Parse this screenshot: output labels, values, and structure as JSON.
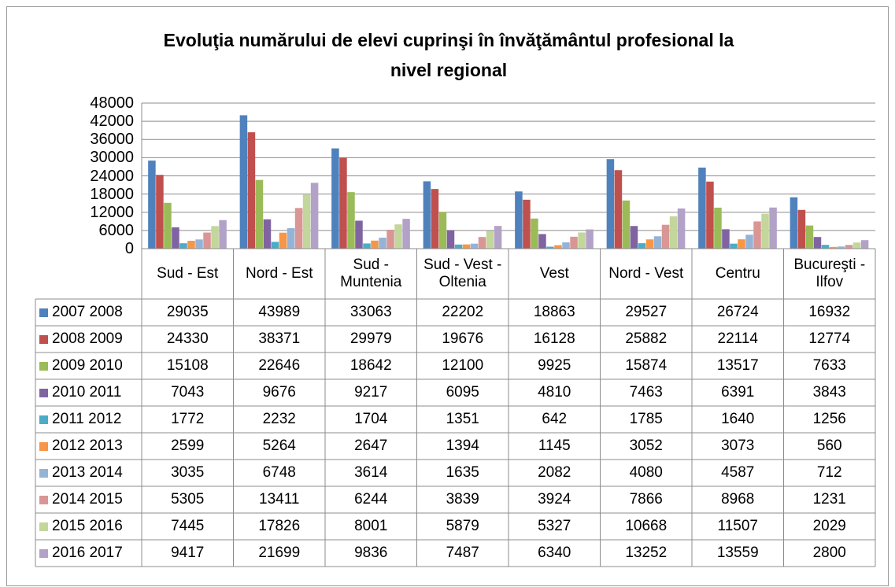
{
  "chart_data": {
    "type": "bar",
    "title": "Evoluţia numărului de elevi cuprinşi în învăţământul profesional la nivel regional",
    "categories": [
      "Sud - Est",
      "Nord - Est",
      "Sud - Muntenia",
      "Sud - Vest - Oltenia",
      "Vest",
      "Nord - Vest",
      "Centru",
      "Bucureşti - Ilfov"
    ],
    "series": [
      {
        "name": "2007 2008",
        "color": "#4f81bd",
        "values": [
          29035,
          43989,
          33063,
          22202,
          18863,
          29527,
          26724,
          16932
        ]
      },
      {
        "name": "2008 2009",
        "color": "#c0504d",
        "values": [
          24330,
          38371,
          29979,
          19676,
          16128,
          25882,
          22114,
          12774
        ]
      },
      {
        "name": "2009 2010",
        "color": "#9bbb59",
        "values": [
          15108,
          22646,
          18642,
          12100,
          9925,
          15874,
          13517,
          7633
        ]
      },
      {
        "name": "2010 2011",
        "color": "#8064a2",
        "values": [
          7043,
          9676,
          9217,
          6095,
          4810,
          7463,
          6391,
          3843
        ]
      },
      {
        "name": "2011 2012",
        "color": "#4bacc6",
        "values": [
          1772,
          2232,
          1704,
          1351,
          642,
          1785,
          1640,
          1256
        ]
      },
      {
        "name": "2012 2013",
        "color": "#f79646",
        "values": [
          2599,
          5264,
          2647,
          1394,
          1145,
          3052,
          3073,
          560
        ]
      },
      {
        "name": "2013 2014",
        "color": "#95b3d7",
        "values": [
          3035,
          6748,
          3614,
          1635,
          2082,
          4080,
          4587,
          712
        ]
      },
      {
        "name": "2014 2015",
        "color": "#d99694",
        "values": [
          5305,
          13411,
          6244,
          3839,
          3924,
          7866,
          8968,
          1231
        ]
      },
      {
        "name": "2015 2016",
        "color": "#c3d69b",
        "values": [
          7445,
          17826,
          8001,
          5879,
          5327,
          10668,
          11507,
          2029
        ]
      },
      {
        "name": "2016 2017",
        "color": "#b3a2c7",
        "values": [
          9417,
          21699,
          9836,
          7487,
          6340,
          13252,
          13559,
          2800
        ]
      }
    ],
    "ylim": [
      0,
      48000
    ],
    "yticks": [
      0,
      6000,
      12000,
      18000,
      24000,
      30000,
      36000,
      42000,
      48000
    ],
    "grid": true
  }
}
